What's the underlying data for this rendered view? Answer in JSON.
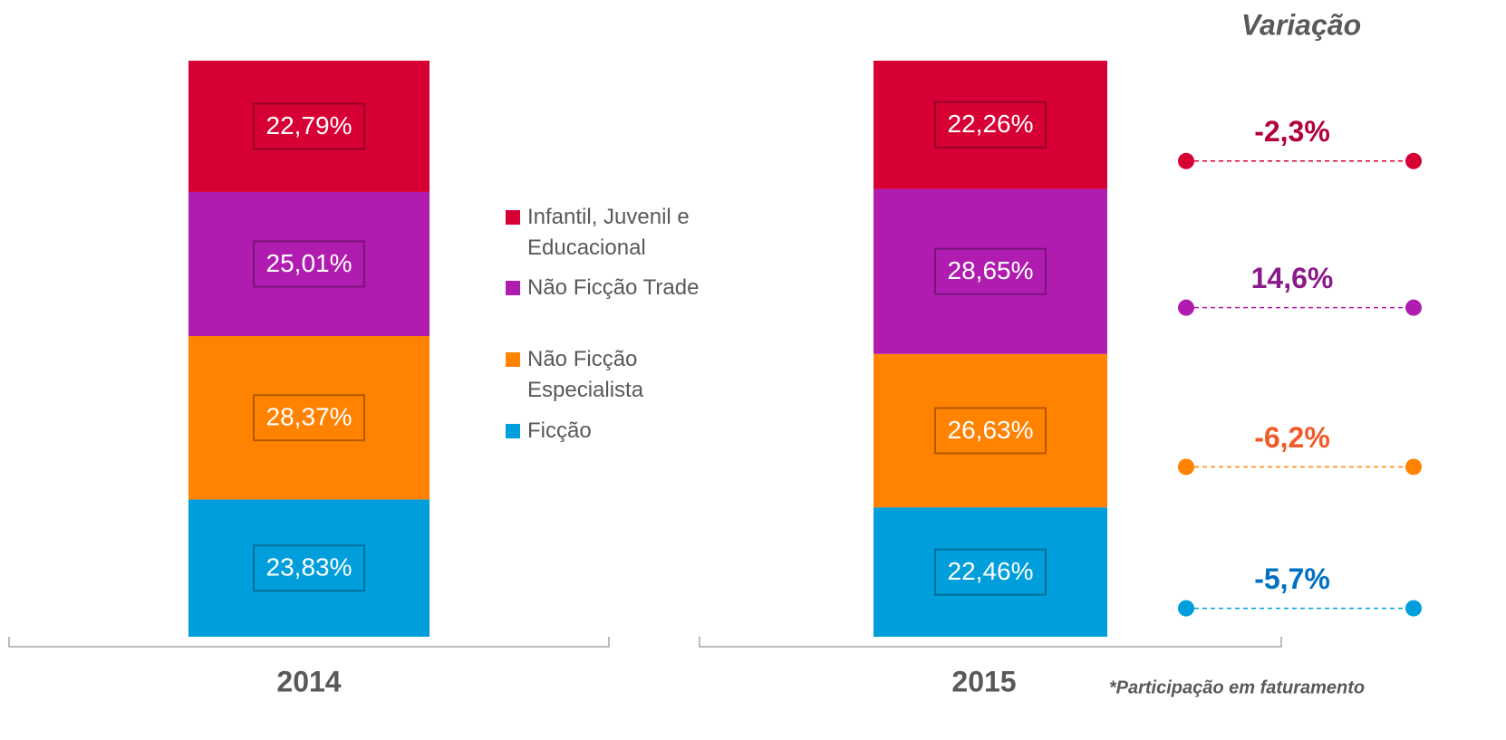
{
  "chart_data": {
    "type": "stacked_bar",
    "categories": [
      "2014",
      "2015"
    ],
    "ylim": [
      0,
      100
    ],
    "series": [
      {
        "name": "Ficção",
        "color": "#009fdb",
        "values": [
          23.83,
          22.46
        ],
        "value_labels": [
          "23,83%",
          "22,46%"
        ]
      },
      {
        "name": "Não Ficção Especialista",
        "color": "#ff8200",
        "values": [
          28.37,
          26.63
        ],
        "value_labels": [
          "28,37%",
          "26,63%"
        ]
      },
      {
        "name": "Não Ficção Trade",
        "color": "#b11cb0",
        "values": [
          25.01,
          28.65
        ],
        "value_labels": [
          "25,01%",
          "28,65%"
        ]
      },
      {
        "name": "Infantil, Juvenil e Educacional",
        "color": "#d70035",
        "values": [
          22.79,
          22.26
        ],
        "value_labels": [
          "22,79%",
          "22,26%"
        ]
      }
    ],
    "variation": {
      "title": "Variação",
      "values": [
        -5.7,
        -6.2,
        14.6,
        -2.3
      ],
      "value_labels": [
        "-5,7%",
        "-6,2%",
        "14,6%",
        "-2,3%"
      ],
      "colors": [
        "#0070c0",
        "#f05a28",
        "#8b1a8b",
        "#b0003a"
      ]
    },
    "footnote": "*Participação em faturamento"
  }
}
